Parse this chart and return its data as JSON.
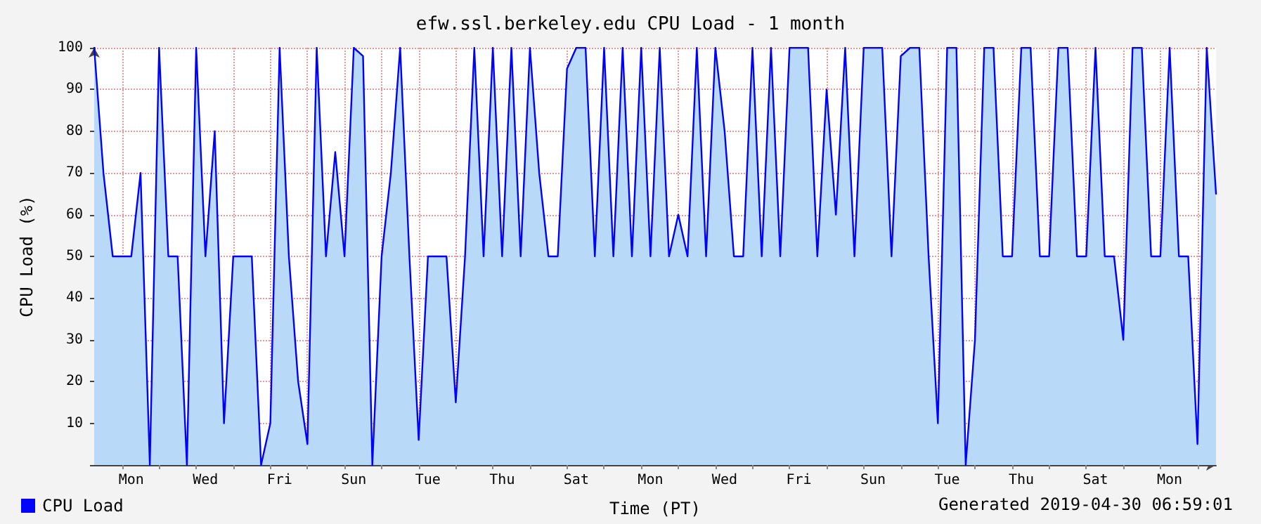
{
  "chart_data": {
    "type": "area",
    "title": "efw.ssl.berkeley.edu CPU Load - 1 month",
    "xlabel": "Time (PT)",
    "ylabel": "CPU Load (%)",
    "annotations": [
      "Generated 2019-04-30 06:59:01"
    ],
    "categories": [
      null,
      null,
      null,
      null,
      "Mon",
      null,
      null,
      null,
      null,
      null,
      null,
      null,
      "Wed",
      null,
      null,
      null,
      null,
      null,
      null,
      null,
      "Fri",
      null,
      null,
      null,
      null,
      null,
      null,
      null,
      "Sun",
      null,
      null,
      null,
      null,
      null,
      null,
      null,
      "Tue",
      null,
      null,
      null,
      null,
      null,
      null,
      null,
      "Thu",
      null,
      null,
      null,
      null,
      null,
      null,
      null,
      "Sat",
      null,
      null,
      null,
      null,
      null,
      null,
      null,
      "Mon",
      null,
      null,
      null,
      null,
      null,
      null,
      null,
      "Wed",
      null,
      null,
      null,
      null,
      null,
      null,
      null,
      "Fri",
      null,
      null,
      null,
      null,
      null,
      null,
      null,
      "Sun",
      null,
      null,
      null,
      null,
      null,
      null,
      null,
      "Tue",
      null,
      null,
      null,
      null,
      null,
      null,
      null,
      "Thu",
      null,
      null,
      null,
      null,
      null,
      null,
      null,
      "Sat",
      null,
      null,
      null,
      null,
      null,
      null,
      null,
      "Mon",
      null,
      null,
      null,
      null,
      null
    ],
    "series": [
      {
        "name": "CPU Load",
        "color": "#0000ff",
        "values": [
          100,
          70,
          50,
          50,
          50,
          70,
          0,
          100,
          50,
          50,
          0,
          100,
          50,
          80,
          10,
          50,
          50,
          50,
          0,
          10,
          100,
          50,
          20,
          5,
          100,
          50,
          75,
          50,
          100,
          98,
          0,
          50,
          70,
          100,
          50,
          6,
          50,
          50,
          50,
          15,
          50,
          100,
          50,
          100,
          50,
          100,
          50,
          100,
          70,
          50,
          50,
          95,
          100,
          100,
          50,
          100,
          50,
          100,
          50,
          100,
          50,
          100,
          50,
          60,
          50,
          100,
          50,
          100,
          80,
          50,
          50,
          100,
          50,
          100,
          50,
          100,
          100,
          100,
          50,
          90,
          60,
          100,
          50,
          100,
          100,
          100,
          50,
          98,
          100,
          100,
          50,
          10,
          100,
          100,
          0,
          30,
          100,
          100,
          50,
          50,
          100,
          100,
          50,
          50,
          100,
          100,
          50,
          50,
          100,
          50,
          50,
          30,
          100,
          100,
          50,
          50,
          100,
          50,
          50,
          5,
          100,
          65
        ]
      }
    ],
    "ylim": [
      0,
      100
    ],
    "yticks": [
      {
        "value": 0,
        "label": null
      },
      10,
      20,
      30,
      40,
      50,
      60,
      70,
      80,
      90,
      100
    ],
    "grid": true,
    "legend": "bottom left",
    "marker": "none",
    "line_style": "solid"
  }
}
